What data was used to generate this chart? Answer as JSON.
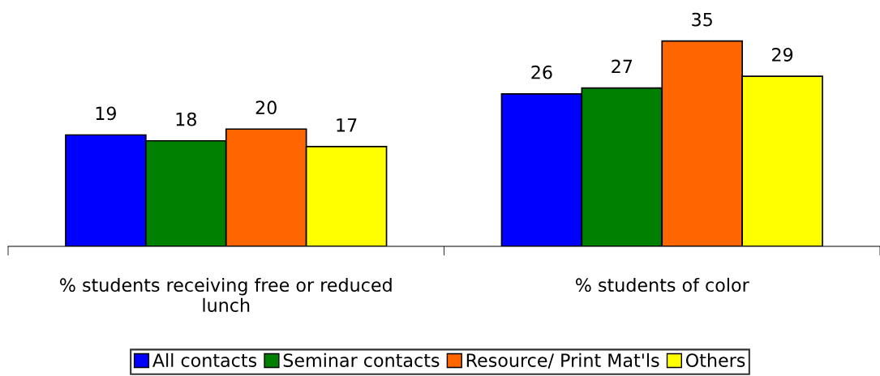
{
  "chart_data": {
    "type": "bar",
    "categories": [
      "% students receiving free or reduced\nlunch",
      "% students of color"
    ],
    "series": [
      {
        "name": "All contacts",
        "color": "#0000ff",
        "values": [
          19,
          26
        ]
      },
      {
        "name": "Seminar contacts",
        "color": "#008000",
        "values": [
          18,
          27
        ]
      },
      {
        "name": "Resource/ Print Mat'ls",
        "color": "#ff6600",
        "values": [
          20,
          35
        ]
      },
      {
        "name": "Others",
        "color": "#ffff00",
        "values": [
          17,
          29
        ]
      }
    ],
    "data_labels": true,
    "legend": "bottom",
    "grid": false
  }
}
